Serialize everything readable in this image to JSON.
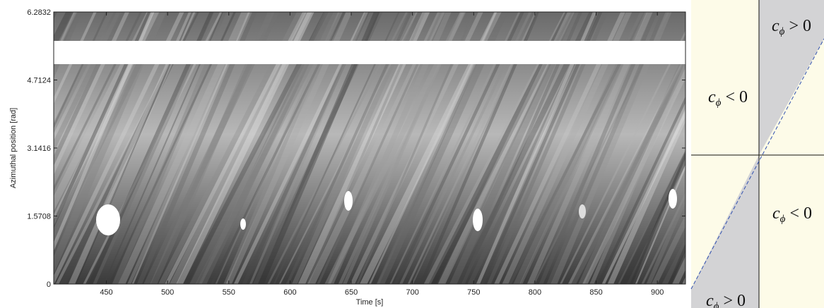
{
  "chart_data": {
    "type": "image",
    "xlabel": "Time [s]",
    "ylabel": "Azimuthal position [rad]",
    "xlim": [
      407,
      923
    ],
    "ylim": [
      0,
      6.2832
    ],
    "xticks": [
      450,
      500,
      550,
      600,
      650,
      700,
      750,
      800,
      850,
      900
    ],
    "yticks": [
      0,
      1.5708,
      3.1416,
      4.7124,
      6.2832
    ]
  },
  "diagram": {
    "regions": [
      {
        "symbol": "c",
        "subscript": "ϕ",
        "relation": "> 0"
      },
      {
        "symbol": "c",
        "subscript": "ϕ",
        "relation": "< 0"
      },
      {
        "symbol": "c",
        "subscript": "ϕ",
        "relation": "< 0"
      },
      {
        "symbol": "c",
        "subscript": "ϕ",
        "relation": "> 0"
      }
    ]
  }
}
